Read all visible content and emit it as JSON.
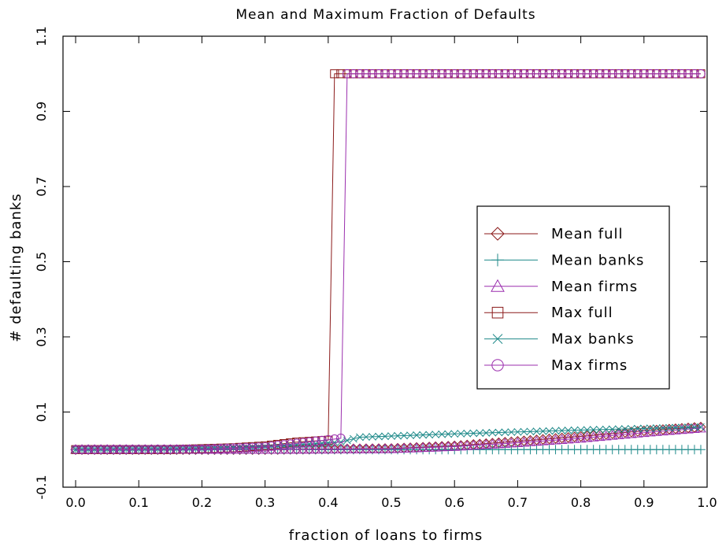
{
  "chart_data": {
    "type": "line",
    "title": "Mean and Maximum Fraction of Defaults",
    "xlabel": "fraction of loans to firms",
    "ylabel": "# defaulting banks",
    "xlim": [
      -0.02,
      1.0
    ],
    "ylim": [
      -0.1,
      1.1
    ],
    "xticks": [
      0.0,
      0.1,
      0.2,
      0.3,
      0.4,
      0.5,
      0.6,
      0.7,
      0.8,
      0.9,
      1.0
    ],
    "xtick_labels": [
      "0.0",
      "0.1",
      "0.2",
      "0.3",
      "0.4",
      "0.5",
      "0.6",
      "0.7",
      "0.8",
      "0.9",
      "1.0"
    ],
    "yticks": [
      -0.1,
      0.1,
      0.3,
      0.5,
      0.7,
      0.9,
      1.1
    ],
    "ytick_labels": [
      "-0.1",
      "0.1",
      "0.3",
      "0.5",
      "0.7",
      "0.9",
      "1.1"
    ],
    "grid": false,
    "legend_position": "right",
    "x_start": 0.0,
    "x_end": 0.99,
    "x_step": 0.01,
    "series": [
      {
        "name": "Mean full",
        "marker": "diamond",
        "color": "#8b1a1a",
        "knots": [
          [
            0.0,
            0.0
          ],
          [
            0.3,
            0.0
          ],
          [
            0.5,
            0.003
          ],
          [
            0.6,
            0.01
          ],
          [
            0.7,
            0.022
          ],
          [
            0.8,
            0.035
          ],
          [
            0.9,
            0.05
          ],
          [
            0.99,
            0.06
          ]
        ]
      },
      {
        "name": "Mean banks",
        "marker": "plus",
        "color": "#1f8a8a",
        "knots": [
          [
            0.0,
            0.0
          ],
          [
            0.99,
            0.0
          ]
        ]
      },
      {
        "name": "Mean firms",
        "marker": "triangle",
        "color": "#9b2fae",
        "knots": [
          [
            0.0,
            0.0
          ],
          [
            0.3,
            0.0
          ],
          [
            0.5,
            0.002
          ],
          [
            0.6,
            0.008
          ],
          [
            0.7,
            0.018
          ],
          [
            0.8,
            0.03
          ],
          [
            0.9,
            0.045
          ],
          [
            0.99,
            0.057
          ]
        ]
      },
      {
        "name": "Max full",
        "marker": "square",
        "color": "#8b1a1a",
        "knots": [
          [
            0.0,
            0.0
          ],
          [
            0.15,
            0.0
          ],
          [
            0.25,
            0.005
          ],
          [
            0.3,
            0.01
          ],
          [
            0.35,
            0.02
          ],
          [
            0.4,
            0.025
          ],
          [
            0.41,
            1.0
          ],
          [
            0.99,
            1.0
          ]
        ]
      },
      {
        "name": "Max banks",
        "marker": "x",
        "color": "#1f8a8a",
        "knots": [
          [
            0.0,
            0.0
          ],
          [
            0.2,
            0.002
          ],
          [
            0.3,
            0.008
          ],
          [
            0.42,
            0.02
          ],
          [
            0.45,
            0.033
          ],
          [
            0.6,
            0.042
          ],
          [
            0.7,
            0.047
          ],
          [
            0.8,
            0.052
          ],
          [
            0.99,
            0.06
          ]
        ]
      },
      {
        "name": "Max firms",
        "marker": "circle",
        "color": "#9b2fae",
        "knots": [
          [
            0.0,
            0.0
          ],
          [
            0.2,
            0.001
          ],
          [
            0.3,
            0.007
          ],
          [
            0.42,
            0.03
          ],
          [
            0.43,
            1.0
          ],
          [
            0.99,
            1.0
          ]
        ]
      }
    ]
  }
}
